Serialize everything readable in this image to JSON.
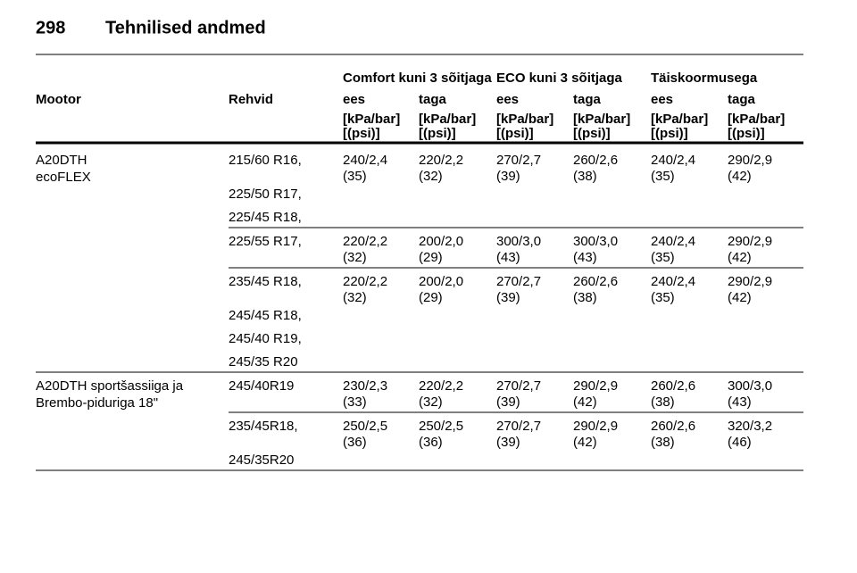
{
  "header": {
    "page": "298",
    "title": "Tehnilised andmed"
  },
  "table": {
    "groups": [
      "Comfort kuni 3 sõitjaga",
      "ECO kuni 3 sõitjaga",
      "Täiskoormusega"
    ],
    "columns": [
      "Mootor",
      "Rehvid",
      "ees",
      "taga",
      "ees",
      "taga",
      "ees",
      "taga"
    ],
    "units": [
      [
        "[kPa/bar]",
        "[(psi)]"
      ],
      [
        "[kPa/bar]",
        "[(psi)]"
      ],
      [
        "[kPa/bar]",
        "[(psi)]"
      ],
      [
        "[kPa/bar]",
        "[(psi)]"
      ],
      [
        "[kPa/bar]",
        "[(psi)]"
      ],
      [
        "[kPa/bar]",
        "[(psi)]"
      ]
    ],
    "engines": [
      {
        "label": [
          "A20DTH",
          "ecoFLEX"
        ],
        "rows": [
          {
            "tyres": [
              "215/60 R16,",
              "225/50 R17,",
              "225/45 R18,"
            ],
            "values": [
              [
                "240/2,4",
                "(35)"
              ],
              [
                "220/2,2",
                "(32)"
              ],
              [
                "270/2,7",
                "(39)"
              ],
              [
                "260/2,6",
                "(38)"
              ],
              [
                "240/2,4",
                "(35)"
              ],
              [
                "290/2,9",
                "(42)"
              ]
            ]
          },
          {
            "tyres": [
              "225/55 R17,"
            ],
            "values": [
              [
                "220/2,2",
                "(32)"
              ],
              [
                "200/2,0",
                "(29)"
              ],
              [
                "300/3,0",
                "(43)"
              ],
              [
                "300/3,0",
                "(43)"
              ],
              [
                "240/2,4",
                "(35)"
              ],
              [
                "290/2,9",
                "(42)"
              ]
            ]
          },
          {
            "tyres": [
              "235/45 R18,",
              "245/45 R18,",
              "245/40 R19,",
              "245/35 R20"
            ],
            "values": [
              [
                "220/2,2",
                "(32)"
              ],
              [
                "200/2,0",
                "(29)"
              ],
              [
                "270/2,7",
                "(39)"
              ],
              [
                "260/2,6",
                "(38)"
              ],
              [
                "240/2,4",
                "(35)"
              ],
              [
                "290/2,9",
                "(42)"
              ]
            ]
          }
        ]
      },
      {
        "label": [
          "A20DTH sportšassiiga ja",
          "Brembo-piduriga 18\""
        ],
        "rows": [
          {
            "tyres": [
              "245/40R19"
            ],
            "values": [
              [
                "230/2,3",
                "(33)"
              ],
              [
                "220/2,2",
                "(32)"
              ],
              [
                "270/2,7",
                "(39)"
              ],
              [
                "290/2,9",
                "(42)"
              ],
              [
                "260/2,6",
                "(38)"
              ],
              [
                "300/3,0",
                "(43)"
              ]
            ]
          },
          {
            "tyres": [
              "235/45R18,",
              "245/35R20"
            ],
            "values": [
              [
                "250/2,5",
                "(36)"
              ],
              [
                "250/2,5",
                "(36)"
              ],
              [
                "270/2,7",
                "(39)"
              ],
              [
                "290/2,9",
                "(42)"
              ],
              [
                "260/2,6",
                "(38)"
              ],
              [
                "320/3,2",
                "(46)"
              ]
            ]
          }
        ]
      }
    ]
  }
}
